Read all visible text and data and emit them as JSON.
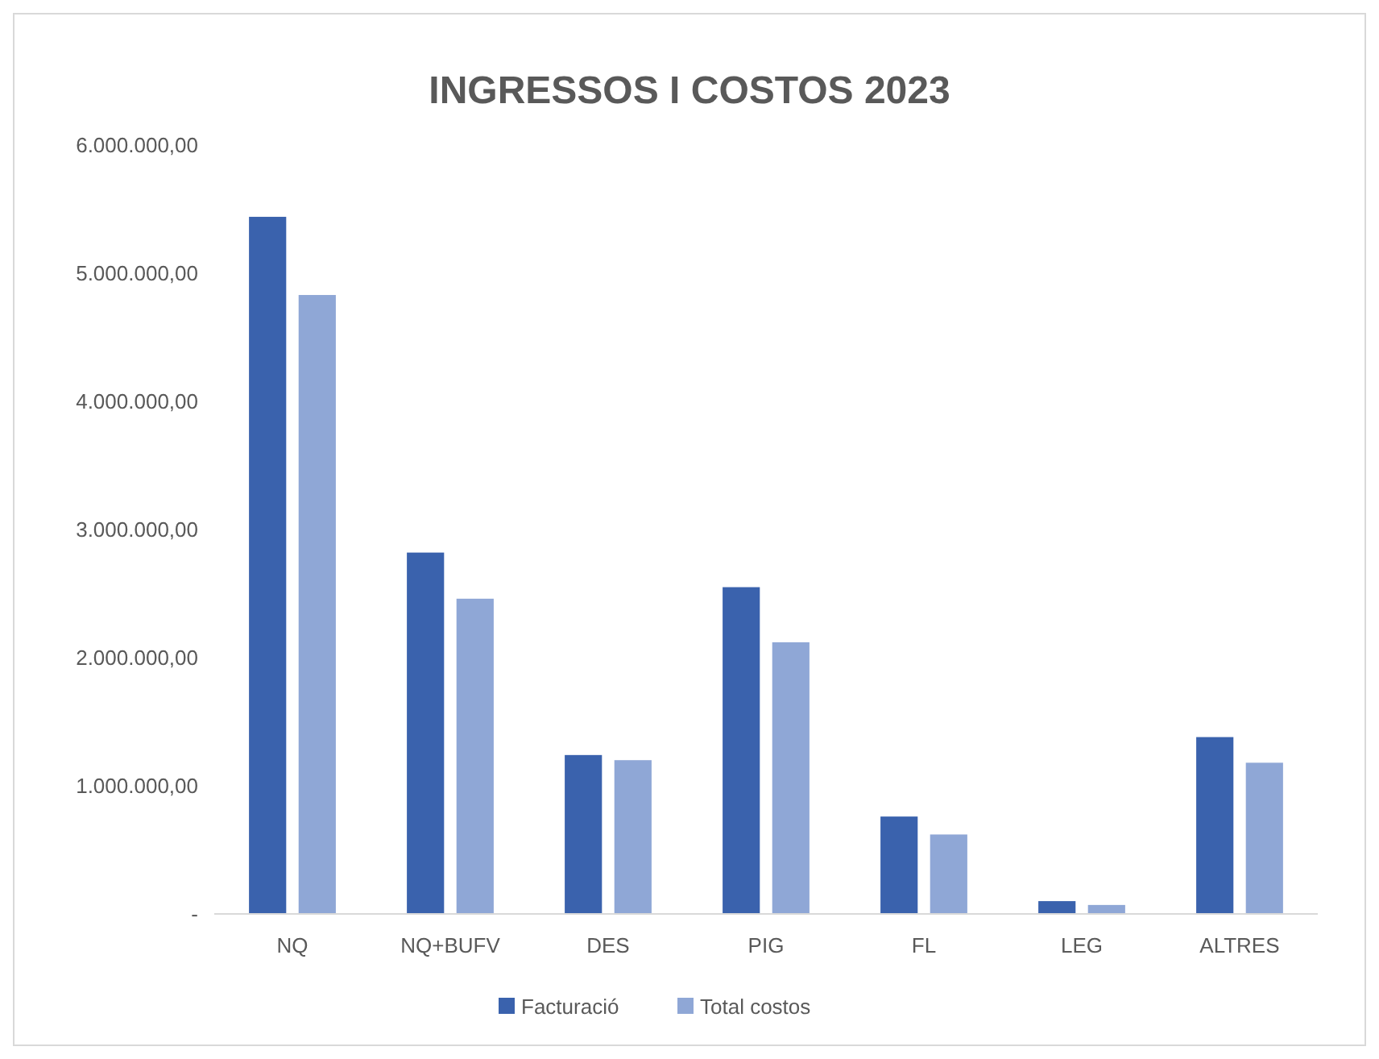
{
  "chart_data": {
    "type": "bar",
    "title": "INGRESSOS I COSTOS 2023",
    "categories": [
      "NQ",
      "NQ+BUFV",
      "DES",
      "PIG",
      "FL",
      "LEG",
      "ALTRES"
    ],
    "series": [
      {
        "name": "Facturació",
        "color": "#3a62ad",
        "values": [
          5440000,
          2820000,
          1240000,
          2550000,
          760000,
          100000,
          1380000
        ]
      },
      {
        "name": "Total costos",
        "color": "#8fa7d6",
        "values": [
          4830000,
          2460000,
          1200000,
          2120000,
          620000,
          70000,
          1180000
        ]
      }
    ],
    "ylim": [
      0,
      6000000
    ],
    "yticks": [
      {
        "value": 0,
        "label": "-"
      },
      {
        "value": 1000000,
        "label": "1.000.000,00"
      },
      {
        "value": 2000000,
        "label": "2.000.000,00"
      },
      {
        "value": 3000000,
        "label": "3.000.000,00"
      },
      {
        "value": 4000000,
        "label": "4.000.000,00"
      },
      {
        "value": 5000000,
        "label": "5.000.000,00"
      },
      {
        "value": 6000000,
        "label": "6.000.000,00"
      }
    ],
    "grid": false,
    "legend": "bottom"
  }
}
